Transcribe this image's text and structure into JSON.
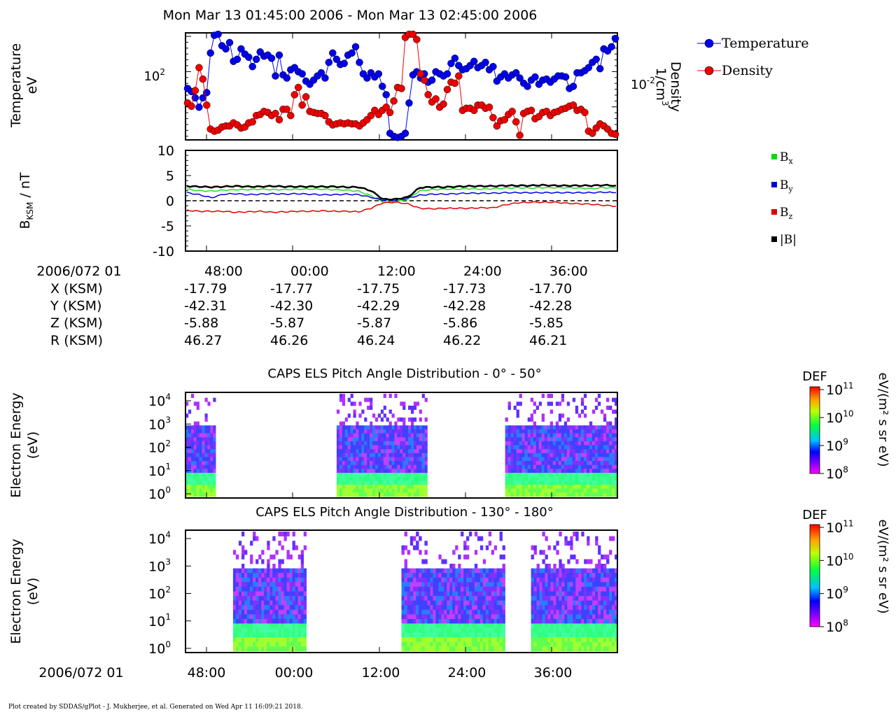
{
  "header": {
    "title": "Mon Mar 13 01:45:00 2006 - Mon Mar 13 02:45:00 2006"
  },
  "footer": {
    "text": "Plot created by SDDAS/gPlot - J. Mukherjee, et al.  Generated on Wed Apr 11 16:09:21 2018."
  },
  "x_axis": {
    "date_label": "2006/072 01",
    "ticks": [
      "48:00",
      "00:00",
      "12:00",
      "24:00",
      "36:00"
    ]
  },
  "ephemeris": {
    "rows": [
      {
        "label": "X (KSM)",
        "values": [
          "-17.79",
          "-17.77",
          "-17.75",
          "-17.73",
          "-17.70"
        ]
      },
      {
        "label": "Y (KSM)",
        "values": [
          "-42.31",
          "-42.30",
          "-42.29",
          "-42.28",
          "-42.28"
        ]
      },
      {
        "label": "Z (KSM)",
        "values": [
          "-5.88",
          "-5.87",
          "-5.87",
          "-5.86",
          "-5.85"
        ]
      },
      {
        "label": "R (KSM)",
        "values": [
          "46.27",
          "46.26",
          "46.24",
          "46.22",
          "46.21"
        ]
      }
    ]
  },
  "chart_data": [
    {
      "type": "scatter",
      "ylabel": [
        "Temperature",
        "eV"
      ],
      "y2label": [
        "Density",
        "1/cm"
      ],
      "y2label_sup": "3",
      "left_tick": {
        "base": "10",
        "exp": "2"
      },
      "right_tick": {
        "base": "10",
        "exp": "-2"
      },
      "legend": [
        {
          "name": "Temperature",
          "color": "#0000ee"
        },
        {
          "name": "Density",
          "color": "#ee0000"
        }
      ],
      "series": [
        {
          "name": "Temperature",
          "color": "#0000ee",
          "values": [
            0.48,
            0.45,
            0.39,
            0.3,
            0.39,
            0.44,
            0.82,
            0.99,
            1.0,
            0.89,
            0.86,
            0.92,
            0.74,
            0.76,
            0.86,
            0.81,
            0.78,
            0.69,
            0.76,
            0.83,
            0.79,
            0.8,
            0.77,
            0.6,
            0.8,
            0.61,
            0.58,
            0.66,
            0.68,
            0.64,
            0.62,
            0.55,
            0.52,
            0.56,
            0.6,
            0.63,
            0.58,
            0.73,
            0.82,
            0.76,
            0.71,
            0.72,
            0.8,
            0.82,
            0.88,
            0.73,
            0.62,
            0.58,
            0.63,
            0.59,
            0.62,
            0.5,
            0.42,
            0.05,
            0.02,
            0.01,
            0.02,
            0.05,
            0.34,
            0.61,
            0.64,
            0.58,
            0.62,
            0.54,
            0.56,
            0.64,
            0.62,
            0.6,
            0.62,
            0.72,
            0.77,
            0.7,
            0.66,
            0.67,
            0.7,
            0.74,
            0.68,
            0.7,
            0.73,
            0.66,
            0.69,
            0.55,
            0.59,
            0.62,
            0.58,
            0.61,
            0.63,
            0.58,
            0.53,
            0.5,
            0.56,
            0.59,
            0.52,
            0.56,
            0.57,
            0.54,
            0.57,
            0.6,
            0.6,
            0.59,
            0.48,
            0.5,
            0.63,
            0.63,
            0.65,
            0.68,
            0.73,
            0.76,
            0.67,
            0.86,
            0.84,
            0.88,
            0.96
          ]
        },
        {
          "name": "Density",
          "color": "#ee0000",
          "values": [
            0.34,
            0.31,
            0.46,
            0.68,
            0.57,
            0.32,
            0.09,
            0.07,
            0.08,
            0.11,
            0.12,
            0.12,
            0.15,
            0.13,
            0.1,
            0.11,
            0.15,
            0.16,
            0.22,
            0.23,
            0.26,
            0.25,
            0.22,
            0.24,
            0.18,
            0.28,
            0.28,
            0.22,
            0.42,
            0.49,
            0.32,
            0.4,
            0.26,
            0.25,
            0.24,
            0.24,
            0.22,
            0.16,
            0.13,
            0.14,
            0.15,
            0.14,
            0.15,
            0.14,
            0.14,
            0.12,
            0.15,
            0.18,
            0.22,
            0.27,
            0.23,
            0.27,
            0.3,
            0.25,
            0.36,
            0.49,
            0.48,
            0.97,
            1.0,
            1.0,
            0.95,
            0.62,
            0.56,
            0.42,
            0.35,
            0.38,
            0.3,
            0.33,
            0.47,
            0.54,
            0.53,
            0.6,
            0.27,
            0.29,
            0.29,
            0.27,
            0.32,
            0.32,
            0.29,
            0.3,
            0.2,
            0.12,
            0.17,
            0.18,
            0.23,
            0.26,
            0.16,
            0.03,
            0.24,
            0.26,
            0.27,
            0.19,
            0.21,
            0.25,
            0.26,
            0.22,
            0.25,
            0.26,
            0.28,
            0.29,
            0.31,
            0.32,
            0.27,
            0.28,
            0.25,
            0.07,
            0.05,
            0.1,
            0.14,
            0.12,
            0.09,
            0.05,
            0.04
          ]
        }
      ]
    },
    {
      "type": "line",
      "ylabel": "B",
      "ylabel_sub": "KSM",
      "ylabel_unit": " / nT",
      "ylim": [
        -10,
        10
      ],
      "yticks": [
        "10",
        "5",
        "0",
        "-5",
        "-10"
      ],
      "legend": [
        {
          "name": "B",
          "sub": "x",
          "color": "#00dd00"
        },
        {
          "name": "B",
          "sub": "y",
          "color": "#0000dd"
        },
        {
          "name": "B",
          "sub": "z",
          "color": "#dd0000"
        },
        {
          "name": "|B|",
          "sub": "",
          "color": "#000000"
        }
      ],
      "series": [
        {
          "name": "Bx",
          "color": "#22dd22",
          "values": [
            2.3,
            2.0,
            1.9,
            2.1,
            2.2,
            2.2,
            2.3,
            2.2,
            2.2,
            2.3,
            2.3,
            2.3,
            2.2,
            2.1,
            1.9,
            1.0,
            -0.3,
            -0.2,
            0.3,
            2.0,
            2.2,
            2.3,
            2.3,
            2.4,
            2.3,
            2.4,
            2.5,
            2.6,
            2.5,
            2.6,
            2.6,
            2.6,
            2.5,
            2.4,
            2.6,
            2.5
          ]
        },
        {
          "name": "By",
          "color": "#0000dd",
          "values": [
            1.6,
            1.2,
            0.6,
            1.3,
            1.4,
            1.2,
            1.3,
            1.4,
            1.3,
            1.4,
            1.3,
            1.2,
            1.2,
            1.3,
            1.2,
            0.7,
            0.1,
            0.1,
            0.5,
            1.1,
            1.3,
            1.3,
            1.4,
            1.5,
            1.5,
            1.5,
            1.6,
            1.6,
            1.6,
            1.6,
            1.6,
            1.6,
            1.6,
            1.6,
            1.7,
            1.6
          ]
        },
        {
          "name": "Bz",
          "color": "#dd0000",
          "values": [
            -1.9,
            -2.1,
            -2.1,
            -2.1,
            -2.3,
            -2.2,
            -2.1,
            -2.3,
            -2.2,
            -2.1,
            -2.1,
            -2.0,
            -2.1,
            -2.1,
            -2.2,
            -1.5,
            -0.4,
            -0.3,
            -0.6,
            -1.5,
            -1.6,
            -1.5,
            -1.5,
            -1.5,
            -1.4,
            -1.4,
            -0.8,
            -0.4,
            -0.3,
            -0.3,
            -0.3,
            -0.5,
            -0.6,
            -0.7,
            -0.9,
            -1.1
          ]
        },
        {
          "name": "|B|",
          "color": "#000000",
          "values": [
            2.9,
            2.8,
            2.7,
            2.8,
            2.9,
            2.8,
            2.8,
            2.9,
            2.8,
            2.8,
            2.8,
            2.8,
            2.8,
            2.7,
            2.7,
            2.0,
            0.3,
            0.3,
            0.7,
            2.6,
            2.7,
            2.7,
            2.8,
            2.9,
            2.9,
            2.9,
            3.0,
            3.0,
            3.0,
            3.1,
            3.0,
            3.0,
            3.0,
            3.0,
            3.1,
            3.0
          ]
        }
      ]
    },
    {
      "type": "heatmap",
      "title": "CAPS ELS Pitch Angle Distribution - 0° - 50°",
      "ylabel": [
        "Electron Energy",
        "(eV)"
      ],
      "yticks": [
        {
          "b": "10",
          "e": "4"
        },
        {
          "b": "10",
          "e": "3"
        },
        {
          "b": "10",
          "e": "2"
        },
        {
          "b": "10",
          "e": "1"
        },
        {
          "b": "10",
          "e": "0"
        }
      ],
      "colorbar": {
        "label": "DEF",
        "unit": "eV/(m² s sr eV)",
        "ticks": [
          {
            "b": "10",
            "e": "11"
          },
          {
            "b": "10",
            "e": "10"
          },
          {
            "b": "10",
            "e": "9"
          },
          {
            "b": "10",
            "e": "8"
          }
        ]
      },
      "data_intervals": [
        [
          0.0,
          0.07
        ],
        [
          0.35,
          0.49
        ],
        [
          0.49,
          0.56
        ],
        [
          0.74,
          1.0
        ]
      ]
    },
    {
      "type": "heatmap",
      "title": "CAPS ELS Pitch Angle Distribution - 130° - 180°",
      "ylabel": [
        "Electron Energy",
        "(eV)"
      ],
      "yticks": [
        {
          "b": "10",
          "e": "4"
        },
        {
          "b": "10",
          "e": "3"
        },
        {
          "b": "10",
          "e": "2"
        },
        {
          "b": "10",
          "e": "1"
        },
        {
          "b": "10",
          "e": "0"
        }
      ],
      "colorbar": {
        "label": "DEF",
        "unit": "eV/(m² s sr eV)",
        "ticks": [
          {
            "b": "10",
            "e": "11"
          },
          {
            "b": "10",
            "e": "10"
          },
          {
            "b": "10",
            "e": "9"
          },
          {
            "b": "10",
            "e": "8"
          }
        ]
      },
      "data_intervals": [
        [
          0.11,
          0.28
        ],
        [
          0.5,
          0.56
        ],
        [
          0.56,
          0.74
        ],
        [
          0.8,
          1.0
        ]
      ]
    }
  ]
}
